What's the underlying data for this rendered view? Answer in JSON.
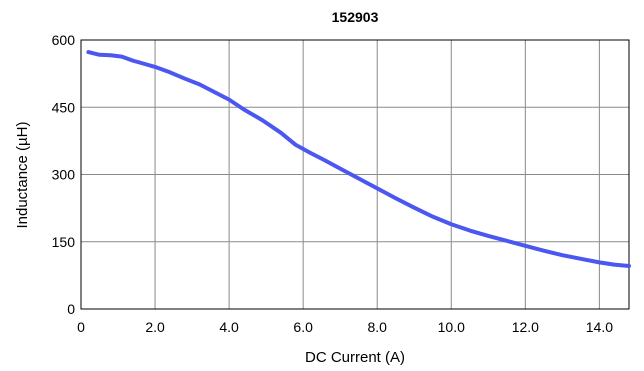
{
  "chart_data": {
    "type": "line",
    "title": "152903",
    "xlabel": "DC Current (A)",
    "ylabel": "Inductance (µH)",
    "xlim": [
      0,
      14.8
    ],
    "ylim": [
      0,
      600
    ],
    "grid": true,
    "x_ticks": [
      0,
      2,
      4,
      6,
      8,
      10,
      12,
      14
    ],
    "x_tick_labels": [
      "0",
      "2.0",
      "4.0",
      "6.0",
      "8.0",
      "10.0",
      "12.0",
      "14.0"
    ],
    "y_ticks": [
      0,
      150,
      300,
      450,
      600
    ],
    "y_tick_labels": [
      "0",
      "150",
      "300",
      "450",
      "600"
    ],
    "series": [
      {
        "color": "#4b57f0",
        "points": [
          [
            0.2,
            573
          ],
          [
            0.5,
            567
          ],
          [
            0.8,
            566
          ],
          [
            1.1,
            563
          ],
          [
            1.4,
            554
          ],
          [
            1.7,
            547
          ],
          [
            2.0,
            540
          ],
          [
            2.4,
            528
          ],
          [
            2.8,
            514
          ],
          [
            3.2,
            501
          ],
          [
            3.6,
            484
          ],
          [
            4.0,
            467
          ],
          [
            4.4,
            445
          ],
          [
            4.9,
            421
          ],
          [
            5.4,
            393
          ],
          [
            5.8,
            366
          ],
          [
            6.2,
            348
          ],
          [
            6.6,
            331
          ],
          [
            7.0,
            313
          ],
          [
            7.5,
            291
          ],
          [
            8.0,
            269
          ],
          [
            8.5,
            247
          ],
          [
            9.0,
            226
          ],
          [
            9.5,
            206
          ],
          [
            10.0,
            189
          ],
          [
            10.5,
            175
          ],
          [
            11.0,
            163
          ],
          [
            11.5,
            152
          ],
          [
            12.0,
            141
          ],
          [
            12.5,
            130
          ],
          [
            13.0,
            120
          ],
          [
            13.5,
            112
          ],
          [
            14.0,
            104
          ],
          [
            14.4,
            99
          ],
          [
            14.8,
            96
          ]
        ]
      }
    ]
  }
}
